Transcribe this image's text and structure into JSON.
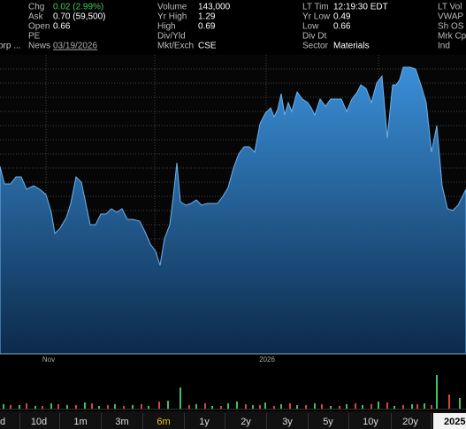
{
  "quote": {
    "columns": [
      [
        {
          "label": "Chg",
          "value": "0.02 (2.99%)",
          "color": "#3fd05a"
        },
        {
          "label": "Ask",
          "value": "0.70 (59,500)"
        },
        {
          "label": "Open",
          "value": "0.66"
        },
        {
          "label": "PE"
        },
        {
          "value": "orp ..."
        }
      ],
      [
        {
          "label": "Volume",
          "value": "143,000"
        },
        {
          "label": "Yr High",
          "value": "1.29"
        },
        {
          "label": "High",
          "value": "0.69"
        },
        {
          "label": "Div/Yld"
        },
        {
          "label": "News",
          "value": "03/19/2026",
          "link": true
        }
      ],
      [
        {
          "label": "Mkt/Exch",
          "value": "CSE"
        }
      ],
      [
        {
          "label": "LT Tim",
          "value": "12:19:30 EDT"
        },
        {
          "label": "Yr Low",
          "value": "0.49"
        },
        {
          "label": "Low",
          "value": "0.66"
        },
        {
          "label": "Div Dt"
        },
        {
          "label": "Sector",
          "value": "Materials"
        }
      ],
      [
        {
          "label": "LT Vol"
        },
        {
          "label": "VWAP"
        },
        {
          "label": "Sh OS"
        },
        {
          "label": "Mrk Cp"
        },
        {
          "label": "Ind"
        }
      ]
    ]
  },
  "chart": {
    "x_labels": [
      "Nov",
      "2026"
    ]
  },
  "ranges": {
    "buttons": [
      "d",
      "10d",
      "1m",
      "3m",
      "6m",
      "1y",
      "2y",
      "3y",
      "5y",
      "10y",
      "20y",
      "2025"
    ],
    "selected_index": 4,
    "current_index": 11
  }
}
